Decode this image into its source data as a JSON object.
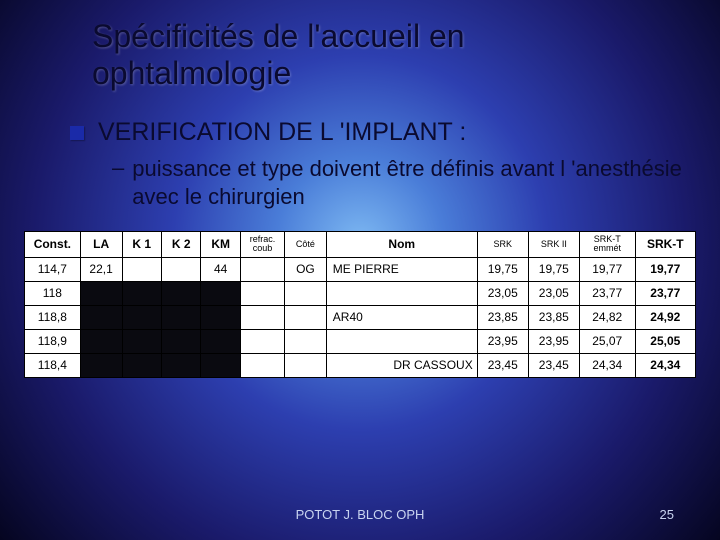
{
  "title_line1": "Spécificités de l'accueil en",
  "title_line2": "ophtalmologie",
  "bullet1": "VERIFICATION DE L 'IMPLANT :",
  "sub1": "puissance et type doivent être définis avant l 'anesthésie avec le chirurgien",
  "footer_center": "POTOT J. BLOC OPH",
  "page_num": "25",
  "table": {
    "columns": [
      "Const.",
      "LA",
      "K 1",
      "K 2",
      "KM",
      "refrac.\ncoub",
      "Côté",
      "Nom",
      "SRK",
      "SRK II",
      "SRK-T emmét",
      "SRK-T"
    ],
    "col_widths": [
      "48",
      "36",
      "34",
      "34",
      "34",
      "38",
      "36",
      "130",
      "44",
      "44",
      "48",
      "52"
    ],
    "header_bold": [
      true,
      true,
      true,
      true,
      true,
      false,
      false,
      true,
      false,
      false,
      false,
      true
    ],
    "header_small": [
      false,
      false,
      false,
      false,
      false,
      true,
      true,
      false,
      true,
      true,
      true,
      false
    ],
    "rows": [
      {
        "cells": [
          "114,7",
          "22,1",
          "",
          "",
          "44",
          "",
          "OG",
          "ME PIERRE",
          "19,75",
          "19,75",
          "19,77",
          "19,77"
        ],
        "black_cols": [],
        "name_align": "left",
        "bold_last": true
      },
      {
        "cells": [
          "118",
          "",
          "",
          "",
          "",
          "",
          "",
          "",
          "23,05",
          "23,05",
          "23,77",
          "23,77"
        ],
        "black_cols": [
          1,
          2,
          3,
          4
        ],
        "name_align": "left",
        "bold_last": true
      },
      {
        "cells": [
          "118,8",
          "",
          "",
          "",
          "",
          "",
          "",
          "AR40",
          "23,85",
          "23,85",
          "24,82",
          "24,92"
        ],
        "black_cols": [
          1,
          2,
          3,
          4
        ],
        "name_align": "left",
        "bold_last": true
      },
      {
        "cells": [
          "118,9",
          "",
          "",
          "",
          "",
          "",
          "",
          "",
          "23,95",
          "23,95",
          "25,07",
          "25,05"
        ],
        "black_cols": [
          1,
          2,
          3,
          4
        ],
        "name_align": "left",
        "bold_last": true
      },
      {
        "cells": [
          "118,4",
          "",
          "",
          "",
          "",
          "",
          "",
          "DR CASSOUX",
          "23,45",
          "23,45",
          "24,34",
          "24,34"
        ],
        "black_cols": [
          1,
          2,
          3,
          4
        ],
        "name_align": "right",
        "bold_last": true
      }
    ]
  }
}
